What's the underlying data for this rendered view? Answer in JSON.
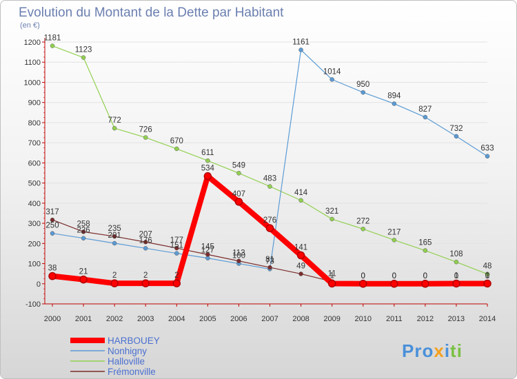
{
  "chart_data": {
    "type": "line",
    "title": "Evolution du Montant de la Dette par Habitant",
    "unit_label": "(en €)",
    "x": [
      "2000",
      "2001",
      "2002",
      "2003",
      "2004",
      "2005",
      "2006",
      "2007",
      "2008",
      "2009",
      "2010",
      "2011",
      "2012",
      "2013",
      "2014"
    ],
    "y_ticks": [
      1200,
      1100,
      1000,
      900,
      800,
      700,
      600,
      500,
      400,
      300,
      200,
      100,
      0,
      -100
    ],
    "ylim": [
      -100,
      1200
    ],
    "legend_position": "bottom-left",
    "series": [
      {
        "name": "HARBOUEY",
        "color": "#ff0000",
        "values": [
          38,
          21,
          2,
          2,
          2,
          534,
          407,
          276,
          141,
          1,
          0,
          0,
          0,
          1,
          1
        ],
        "labels": [
          "38",
          "21",
          "2",
          "2",
          "2",
          "534",
          "407",
          "276",
          "141",
          "1",
          "0",
          "0",
          "0",
          "1",
          "1"
        ]
      },
      {
        "name": "Nonhigny",
        "color": "#5b9bd5",
        "values": [
          250,
          226,
          201,
          176,
          151,
          127,
          100,
          73,
          1161,
          1014,
          950,
          894,
          827,
          732,
          633
        ],
        "labels": [
          "250",
          "226",
          "201",
          "176",
          "151",
          "127",
          "100",
          "73",
          "1161",
          "1014",
          "950",
          "894",
          "827",
          "732",
          "633"
        ]
      },
      {
        "name": "Halloville",
        "color": "#92d050",
        "values": [
          1181,
          1123,
          772,
          726,
          670,
          611,
          549,
          483,
          414,
          321,
          272,
          217,
          165,
          108,
          48
        ],
        "labels": [
          "1181",
          "1123",
          "772",
          "726",
          "670",
          "611",
          "549",
          "483",
          "414",
          "321",
          "272",
          "217",
          "165",
          "108",
          "48"
        ]
      },
      {
        "name": "Frémonville",
        "color": "#7b2c2c",
        "values": [
          317,
          258,
          235,
          207,
          177,
          145,
          113,
          81,
          49,
          11,
          0,
          0,
          0,
          0,
          0
        ],
        "labels": [
          "317",
          "258",
          "235",
          "207",
          "177",
          "145",
          "113",
          "81",
          "49",
          "11",
          "0",
          "0",
          "0",
          "0",
          "0"
        ]
      }
    ]
  },
  "logo": {
    "text": "Proxiti"
  }
}
